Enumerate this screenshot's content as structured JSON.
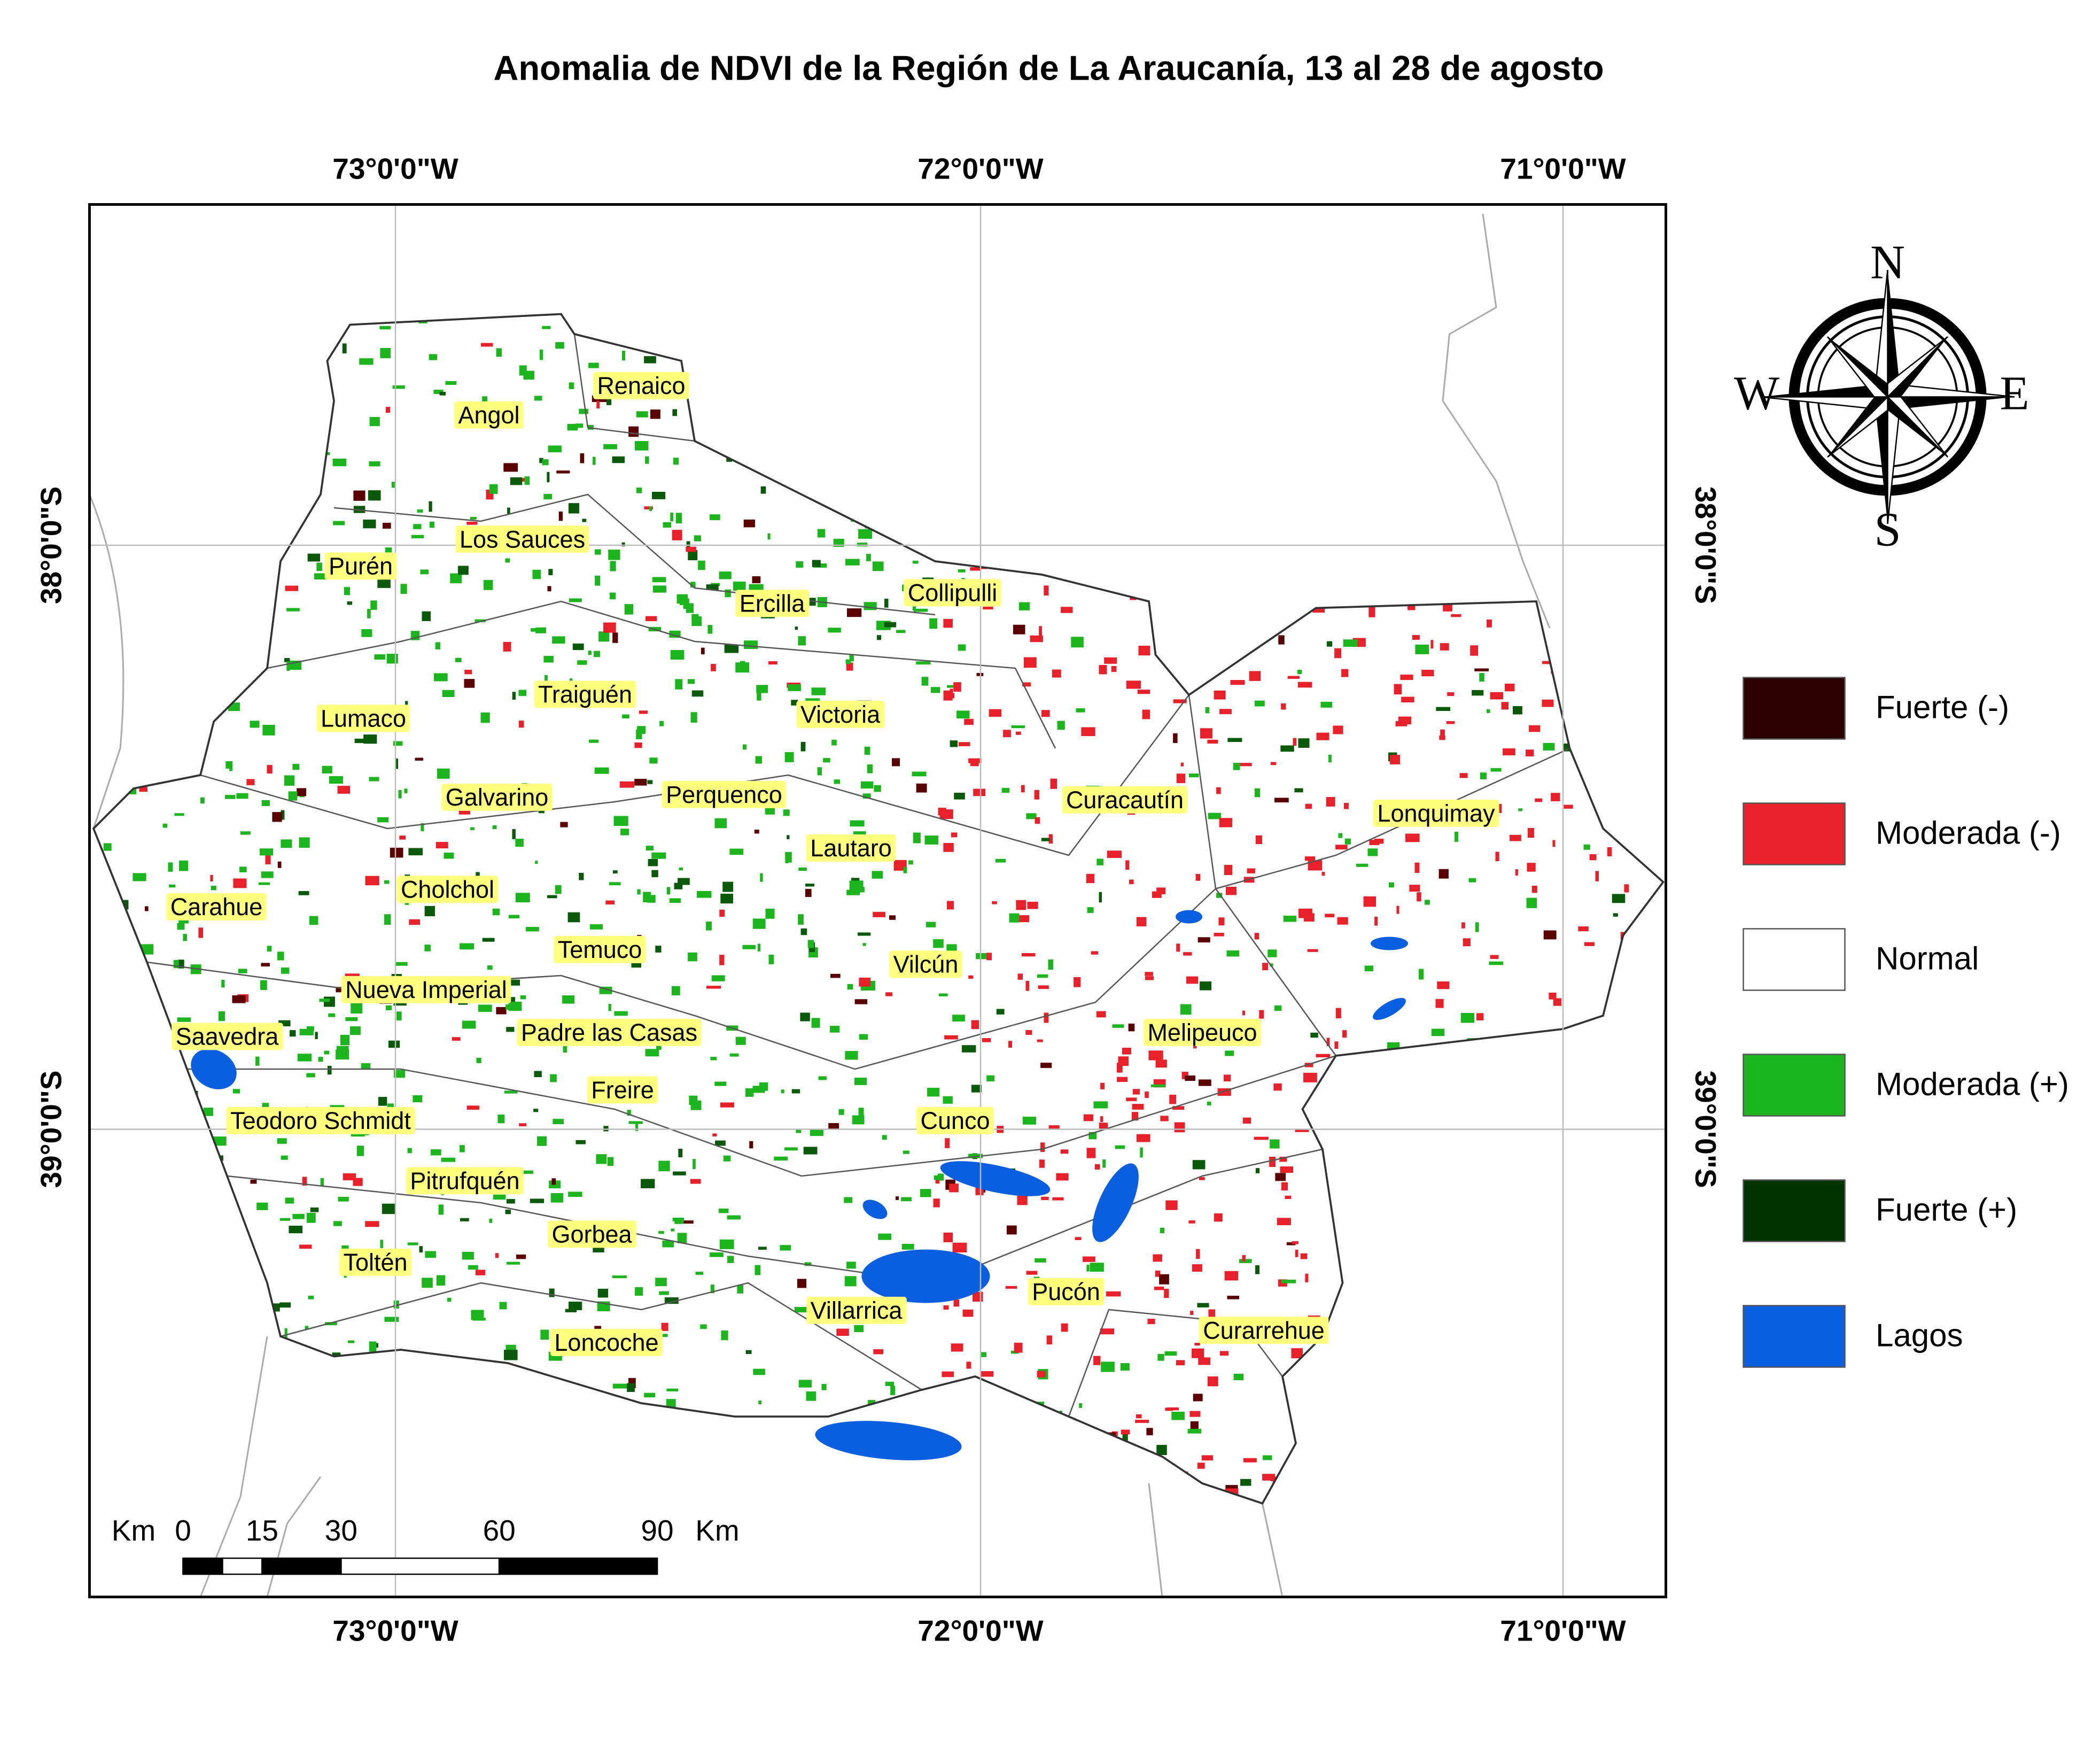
{
  "title": "Anomalia de NDVI de la Región de La Araucanía, 13 al 28 de agosto",
  "graticule": {
    "lon": [
      "73°0'0\"W",
      "72°0'0\"W",
      "71°0'0\"W"
    ],
    "lat": [
      "38°0'0\"S",
      "39°0'0\"S"
    ]
  },
  "communes": [
    "Renaico",
    "Angol",
    "Los Sauces",
    "Purén",
    "Ercilla",
    "Collipulli",
    "Traiguén",
    "Victoria",
    "Lumaco",
    "Galvarino",
    "Perquenco",
    "Curacautín",
    "Lonquimay",
    "Lautaro",
    "Cholchol",
    "Carahue",
    "Temuco",
    "Vilcún",
    "Nueva Imperial",
    "Saavedra",
    "Padre las Casas",
    "Melipeuco",
    "Freire",
    "Teodoro Schmidt",
    "Cunco",
    "Pitrufquén",
    "Gorbea",
    "Toltén",
    "Pucón",
    "Villarrica",
    "Curarrehue",
    "Loncoche"
  ],
  "legend": [
    {
      "label": "Fuerte (-)",
      "color": "#2d0000"
    },
    {
      "label": "Moderada (-)",
      "color": "#e8202a"
    },
    {
      "label": "Normal",
      "color": "#ffffff"
    },
    {
      "label": "Moderada (+)",
      "color": "#1db51d"
    },
    {
      "label": "Fuerte (+)",
      "color": "#003300"
    },
    {
      "label": "Lagos",
      "color": "#0a5fe0"
    }
  ],
  "compass": {
    "n": "N",
    "s": "S",
    "w": "W",
    "e": "E"
  },
  "scale_bar": {
    "unit": "Km",
    "ticks": [
      0,
      15,
      30,
      60,
      90
    ]
  }
}
